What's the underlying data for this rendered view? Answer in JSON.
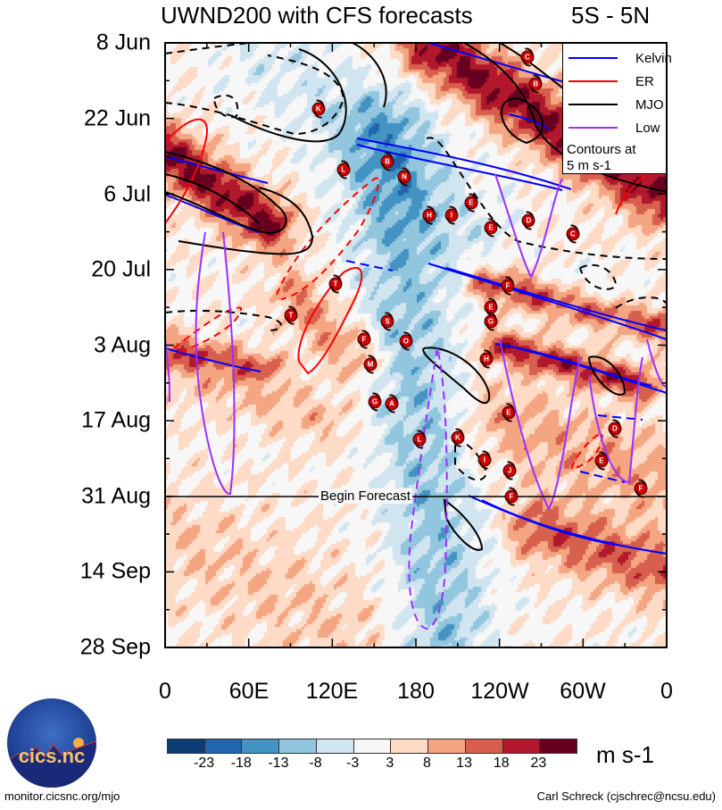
{
  "header": {
    "title": "UWND200 with CFS forecasts",
    "region": "5S - 5N"
  },
  "chart_data": {
    "type": "heatmap",
    "title": "UWND200 with CFS forecasts",
    "subtitle": "5S - 5N",
    "xlabel": "",
    "ylabel": "",
    "x_ticks": [
      "0",
      "60E",
      "120E",
      "180",
      "120W",
      "60W",
      "0"
    ],
    "x_range": [
      0,
      360
    ],
    "y_ticks": [
      "8 Jun",
      "22 Jun",
      "6 Jul",
      "20 Jul",
      "3 Aug",
      "17 Aug",
      "31 Aug",
      "14 Sep",
      "28 Sep"
    ],
    "y_range_days": [
      0,
      112
    ],
    "forecast_start_day": 84,
    "forecast_label": "Begin Forecast",
    "legend": {
      "placement": "top-right",
      "entries": [
        {
          "label": "Kelvin",
          "color": "#0000ff"
        },
        {
          "label": "ER",
          "color": "#ff0000"
        },
        {
          "label": "MJO",
          "color": "#000000"
        },
        {
          "label": "Low",
          "color": "#9b30ff"
        }
      ],
      "note_line1": "Contours at",
      "note_line2": "5 m s-1"
    },
    "colorbar": {
      "units": "m s-1",
      "labels": [
        "-23",
        "-18",
        "-13",
        "-8",
        "-3",
        "3",
        "8",
        "13",
        "18",
        "23"
      ],
      "colors": [
        "#0b3c74",
        "#2166ac",
        "#4393c3",
        "#92c5de",
        "#d1e5f0",
        "#f7f7f7",
        "#fddbc7",
        "#f4a582",
        "#d6604d",
        "#b2182b",
        "#67001f"
      ]
    },
    "storms": [
      {
        "letter": "C",
        "lon": 260,
        "day": 2.6
      },
      {
        "letter": "B",
        "lon": 266,
        "day": 7.6
      },
      {
        "letter": "K",
        "lon": 110,
        "day": 12.2
      },
      {
        "letter": "L",
        "lon": 128,
        "day": 23.5
      },
      {
        "letter": "B",
        "lon": 159.5,
        "day": 22
      },
      {
        "letter": "N",
        "lon": 171.7,
        "day": 24.8
      },
      {
        "letter": "E",
        "lon": 219.7,
        "day": 29.6
      },
      {
        "letter": "H",
        "lon": 189.6,
        "day": 32
      },
      {
        "letter": "I",
        "lon": 205.6,
        "day": 32
      },
      {
        "letter": "E",
        "lon": 233.8,
        "day": 34.2
      },
      {
        "letter": "D",
        "lon": 261,
        "day": 33
      },
      {
        "letter": "C",
        "lon": 292.7,
        "day": 35.4
      },
      {
        "letter": "T",
        "lon": 122.3,
        "day": 44.7
      },
      {
        "letter": "T",
        "lon": 90.3,
        "day": 50.5
      },
      {
        "letter": "S",
        "lon": 159.5,
        "day": 51.6
      },
      {
        "letter": "F",
        "lon": 142.8,
        "day": 54.9
      },
      {
        "letter": "O",
        "lon": 172.9,
        "day": 55.3
      },
      {
        "letter": "M",
        "lon": 147.3,
        "day": 59.6
      },
      {
        "letter": "F",
        "lon": 246,
        "day": 45
      },
      {
        "letter": "E",
        "lon": 233.8,
        "day": 49
      },
      {
        "letter": "G",
        "lon": 233.8,
        "day": 51.6
      },
      {
        "letter": "H",
        "lon": 230.6,
        "day": 58.6
      },
      {
        "letter": "G",
        "lon": 150.5,
        "day": 66.5
      },
      {
        "letter": "A",
        "lon": 162.7,
        "day": 66.8
      },
      {
        "letter": "E",
        "lon": 246.6,
        "day": 68.5
      },
      {
        "letter": "L",
        "lon": 182.6,
        "day": 73.4
      },
      {
        "letter": "K",
        "lon": 210,
        "day": 73.1
      },
      {
        "letter": "I",
        "lon": 229.3,
        "day": 77.3
      },
      {
        "letter": "J",
        "lon": 247.3,
        "day": 79.2
      },
      {
        "letter": "D",
        "lon": 322.8,
        "day": 71.5
      },
      {
        "letter": "E",
        "lon": 313.2,
        "day": 77.4
      },
      {
        "letter": "F",
        "lon": 341.4,
        "day": 82.5
      },
      {
        "letter": "F",
        "lon": 248.5,
        "day": 84
      }
    ]
  },
  "footer": {
    "logo_text": "cics.nc",
    "logo_ring": "Cooperative Institute for Climate and Satellites",
    "url": "monitor.cicsnc.org/mjo",
    "author": "Carl Schreck (cjschrec@ncsu.edu)"
  }
}
